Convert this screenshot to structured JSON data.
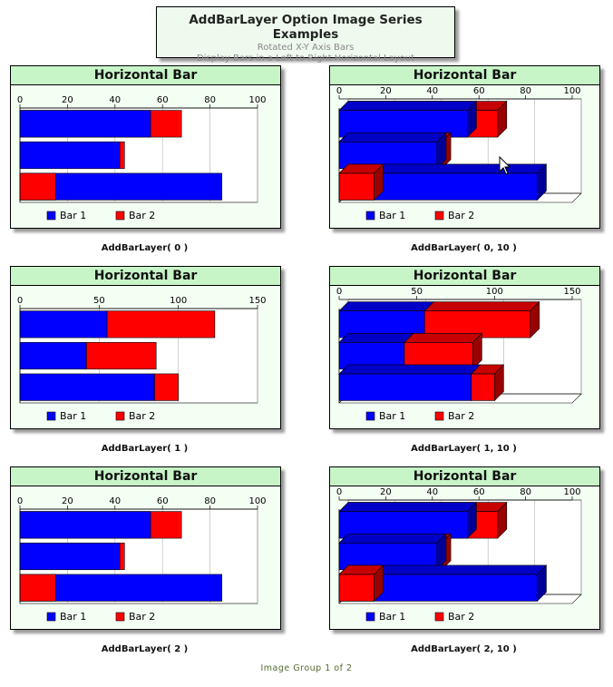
{
  "header": {
    "title": "AddBarLayer Option Image Series Examples",
    "subtitle1": "Rotated X-Y Axis Bars",
    "subtitle2": "Display Bars in a Left to Right Horizontal Layout"
  },
  "footer": "Image Group 1 of 2",
  "colors": {
    "bar1": "#0000ff",
    "bar2": "#ff0000",
    "panel_bg": "#f4fff4",
    "title_bg": "#c8f5c8"
  },
  "chart_data": [
    {
      "type": "bar",
      "orientation": "horizontal",
      "stacked": false,
      "title": "Horizontal Bar",
      "caption": "AddBarLayer( 0 )",
      "depth": 0,
      "xlim": [
        0,
        100
      ],
      "ticks": [
        "0",
        "20",
        "40",
        "60",
        "80",
        "100"
      ],
      "series": [
        {
          "name": "Bar 1",
          "values": [
            55,
            42,
            85
          ]
        },
        {
          "name": "Bar 2",
          "values": [
            68,
            44,
            15
          ]
        }
      ]
    },
    {
      "type": "bar",
      "orientation": "horizontal",
      "stacked": false,
      "title": "Horizontal Bar",
      "caption": "AddBarLayer( 0, 10 )",
      "depth": 10,
      "xlim": [
        0,
        100
      ],
      "ticks": [
        "0",
        "20",
        "40",
        "60",
        "80",
        "100"
      ],
      "series": [
        {
          "name": "Bar 1",
          "values": [
            55,
            42,
            85
          ]
        },
        {
          "name": "Bar 2",
          "values": [
            68,
            44,
            15
          ]
        }
      ]
    },
    {
      "type": "bar",
      "orientation": "horizontal",
      "stacked": true,
      "title": "Horizontal Bar",
      "caption": "AddBarLayer( 1 )",
      "depth": 0,
      "xlim": [
        0,
        150
      ],
      "ticks": [
        "0",
        "50",
        "100",
        "150"
      ],
      "series": [
        {
          "name": "Bar 1",
          "values": [
            55,
            42,
            85
          ]
        },
        {
          "name": "Bar 2",
          "values": [
            68,
            44,
            15
          ]
        }
      ]
    },
    {
      "type": "bar",
      "orientation": "horizontal",
      "stacked": true,
      "title": "Horizontal Bar",
      "caption": "AddBarLayer( 1, 10 )",
      "depth": 10,
      "xlim": [
        0,
        150
      ],
      "ticks": [
        "0",
        "50",
        "100",
        "150"
      ],
      "series": [
        {
          "name": "Bar 1",
          "values": [
            55,
            42,
            85
          ]
        },
        {
          "name": "Bar 2",
          "values": [
            68,
            44,
            15
          ]
        }
      ]
    },
    {
      "type": "bar",
      "orientation": "horizontal",
      "stacked": false,
      "title": "Horizontal Bar",
      "caption": "AddBarLayer( 2 )",
      "depth": 0,
      "xlim": [
        0,
        100
      ],
      "ticks": [
        "0",
        "20",
        "40",
        "60",
        "80",
        "100"
      ],
      "series": [
        {
          "name": "Bar 1",
          "values": [
            55,
            42,
            85
          ]
        },
        {
          "name": "Bar 2",
          "values": [
            68,
            44,
            15
          ]
        }
      ]
    },
    {
      "type": "bar",
      "orientation": "horizontal",
      "stacked": false,
      "title": "Horizontal Bar",
      "caption": "AddBarLayer( 2, 10 )",
      "depth": 10,
      "xlim": [
        0,
        100
      ],
      "ticks": [
        "0",
        "20",
        "40",
        "60",
        "80",
        "100"
      ],
      "series": [
        {
          "name": "Bar 1",
          "values": [
            55,
            42,
            85
          ]
        },
        {
          "name": "Bar 2",
          "values": [
            68,
            44,
            15
          ]
        }
      ]
    }
  ]
}
